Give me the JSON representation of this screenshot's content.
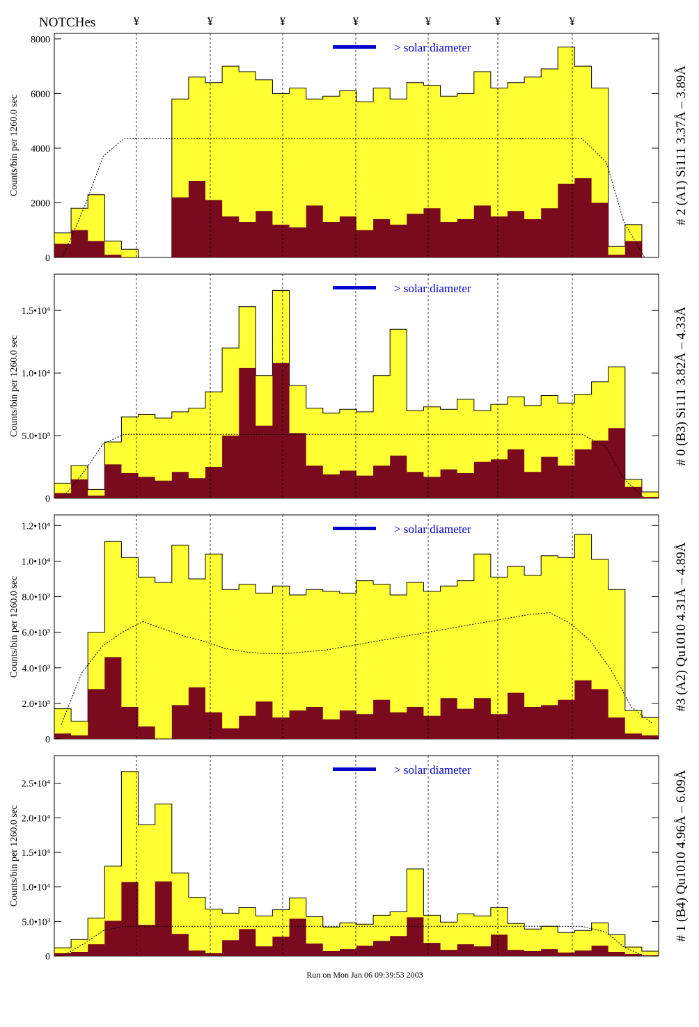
{
  "header": {
    "notches_label": "NOTCHes",
    "notch_symbol": "¥",
    "notch_positions": [
      1,
      2,
      3,
      4,
      5,
      6,
      7
    ]
  },
  "footer": {
    "run_label": "Run on Mon Jan 06 09:39:53 2003"
  },
  "colors": {
    "total_fill": "#ffff33",
    "total_outline": "#000000",
    "flare_fill": "#7a0a1e",
    "marker": "#0000cc",
    "text": "#000000"
  },
  "chart_data": [
    {
      "type": "area",
      "right_label": "# 2 (A1) Si111  3.37Å – 3.89Å",
      "ylabel": "Counts/bin per   1260.0 sec",
      "yticks": [
        "0",
        "2000",
        "4000",
        "6000",
        "8000"
      ],
      "ytick_values": [
        0,
        2000,
        4000,
        6000,
        8000
      ],
      "ylim": [
        0,
        8200
      ],
      "legend": "> solar diameter",
      "plateau": 4350,
      "series": [
        {
          "name": "",
          "values": [
            900,
            1800,
            2300,
            600,
            300,
            0,
            0,
            5800,
            6600,
            6400,
            7000,
            6800,
            6500,
            6000,
            6200,
            5800,
            5900,
            6100,
            5700,
            6200,
            5800,
            6400,
            6300,
            5900,
            6000,
            6800,
            6200,
            6400,
            6600,
            6900,
            7700,
            7000,
            6200,
            400,
            1200,
            0
          ]
        },
        {
          "name": "",
          "values": [
            500,
            1000,
            600,
            100,
            0,
            0,
            0,
            2200,
            2800,
            2100,
            1500,
            1300,
            1700,
            1200,
            1100,
            1900,
            1300,
            1500,
            1000,
            1400,
            1200,
            1600,
            1800,
            1300,
            1400,
            1900,
            1500,
            1700,
            1400,
            1800,
            2700,
            2900,
            2000,
            100,
            600,
            0
          ]
        }
      ]
    },
    {
      "type": "area",
      "right_label": "# 0 (B3) Si111  3.82Å – 4.33Å",
      "ylabel": "Counts/bin per   1260.0 sec",
      "yticks": [
        "0",
        "5.0•10³",
        "1.0•10⁴",
        "1.5•10⁴"
      ],
      "ytick_values": [
        0,
        5000,
        10000,
        15000
      ],
      "ylim": [
        0,
        17900
      ],
      "legend": "> solar diameter",
      "plateau": 5100,
      "series": [
        {
          "name": "",
          "values": [
            1200,
            2600,
            700,
            4500,
            6500,
            6700,
            6400,
            6900,
            7200,
            8500,
            12000,
            15300,
            9800,
            16600,
            9000,
            7200,
            6800,
            7100,
            6900,
            9800,
            13500,
            7000,
            7300,
            7100,
            7900,
            7000,
            7500,
            8100,
            7400,
            8200,
            7600,
            8300,
            9300,
            10500,
            1500,
            500
          ]
        },
        {
          "name": "",
          "values": [
            400,
            1500,
            200,
            2700,
            2000,
            1700,
            1400,
            2100,
            1600,
            2500,
            5000,
            10400,
            5800,
            10800,
            5200,
            2600,
            1900,
            2200,
            1800,
            2600,
            3400,
            2100,
            1700,
            2300,
            2000,
            2900,
            3100,
            3900,
            2100,
            3300,
            2600,
            3900,
            4600,
            5600,
            900,
            100
          ]
        }
      ]
    },
    {
      "type": "area",
      "right_label": "#3 (A2) Qu1010  4.31Å – 4.89Å",
      "ylabel": "Counts/bin per   1260.0 sec",
      "yticks": [
        "0",
        "2.0•10³",
        "4.0•10³",
        "6.0•10³",
        "8.0•10³",
        "1.0•10⁴",
        "1.2•10⁴"
      ],
      "ytick_values": [
        0,
        2000,
        4000,
        6000,
        8000,
        10000,
        12000
      ],
      "ylim": [
        0,
        12600
      ],
      "legend": "> solar diameter",
      "plateau": 0,
      "series": [
        {
          "name": "",
          "values": [
            1700,
            1000,
            6000,
            11100,
            10200,
            9100,
            8800,
            10900,
            9000,
            10400,
            8400,
            8700,
            8200,
            8600,
            8100,
            8400,
            8300,
            8200,
            8900,
            8700,
            8100,
            8800,
            8300,
            8600,
            8900,
            10400,
            9100,
            9700,
            9200,
            10300,
            10200,
            11500,
            10100,
            8400,
            1600,
            1200
          ]
        },
        {
          "name": "",
          "values": [
            300,
            200,
            2800,
            4600,
            1800,
            700,
            0,
            1900,
            2900,
            1500,
            600,
            1300,
            2100,
            1200,
            1600,
            1800,
            1100,
            1600,
            1400,
            2200,
            1500,
            1800,
            1300,
            2300,
            1700,
            2300,
            1400,
            2600,
            1800,
            1900,
            2200,
            3300,
            2800,
            1200,
            300,
            200
          ]
        }
      ],
      "trend": [
        800,
        3700,
        5200,
        6000,
        6600,
        6200,
        5800,
        5500,
        5100,
        4900,
        4800,
        4800,
        4900,
        5000,
        5200,
        5400,
        5600,
        5800,
        6000,
        6200,
        6400,
        6600,
        6800,
        7000,
        7100,
        6500,
        5500,
        3900,
        1800,
        900
      ]
    },
    {
      "type": "area",
      "right_label": "# 1 (B4) Qu1010 4.96Å – 6.09Å",
      "ylabel": "Counts/bin per   1260.0 sec",
      "yticks": [
        "0",
        "5.0•10³",
        "1.0•10⁴",
        "1.5•10⁴",
        "2.0•10⁴",
        "2.5•10⁴"
      ],
      "ytick_values": [
        0,
        5000,
        10000,
        15000,
        20000,
        25000
      ],
      "ylim": [
        0,
        29000
      ],
      "legend": "> solar diameter",
      "plateau": 4300,
      "series": [
        {
          "name": "",
          "values": [
            1200,
            2400,
            5500,
            13000,
            26700,
            19000,
            22000,
            12000,
            8500,
            6800,
            6200,
            7000,
            5800,
            6700,
            8400,
            5700,
            4200,
            4800,
            4600,
            5900,
            6400,
            12600,
            5900,
            4900,
            6100,
            5800,
            7000,
            4700,
            3900,
            4300,
            3400,
            3700,
            4800,
            3100,
            1300,
            700
          ]
        },
        {
          "name": "",
          "values": [
            400,
            600,
            1700,
            5100,
            10700,
            4500,
            10800,
            3200,
            800,
            400,
            2300,
            3900,
            1400,
            2800,
            5400,
            1800,
            700,
            1000,
            1500,
            2200,
            2900,
            5600,
            1900,
            900,
            1700,
            1400,
            3100,
            900,
            700,
            1000,
            500,
            800,
            1500,
            600,
            300,
            100
          ]
        }
      ]
    }
  ]
}
